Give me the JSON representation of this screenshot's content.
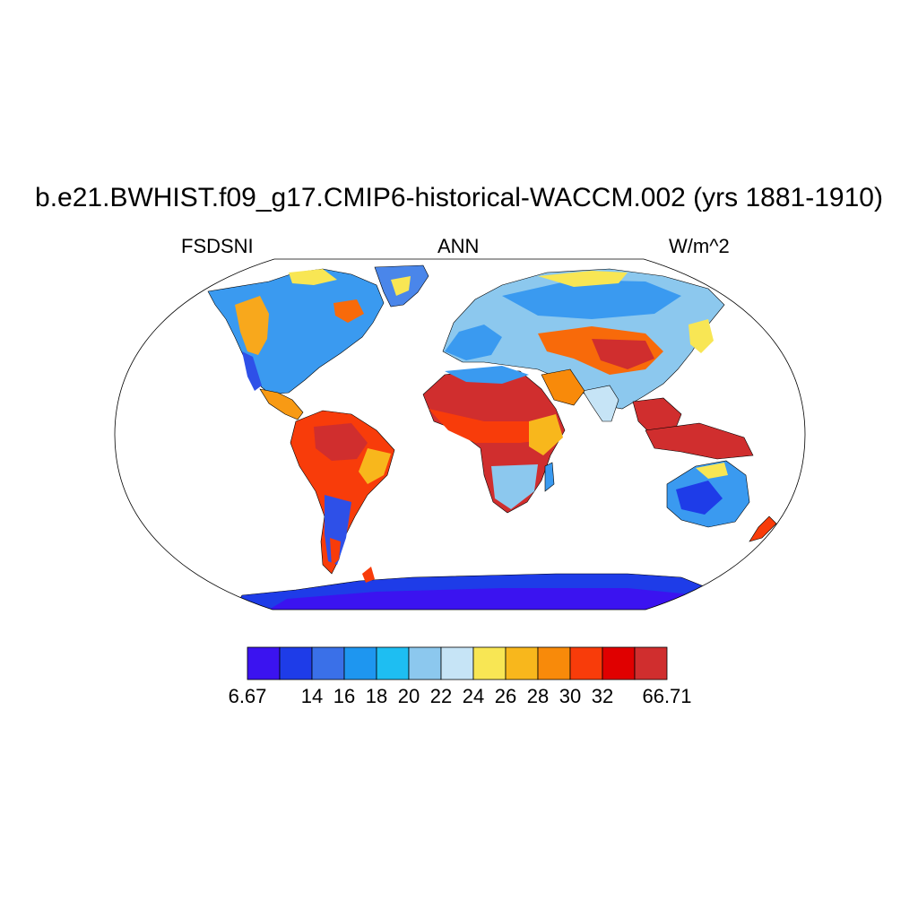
{
  "title": "b.e21.BWHIST.f09_g17.CMIP6-historical-WACCM.002 (yrs 1881-1910)",
  "subtitles": {
    "left": "FSDSNI",
    "center": "ANN",
    "right": "W/m^2"
  },
  "colorbar": {
    "colors": [
      "#3b13f0",
      "#1e3ce8",
      "#3a70e8",
      "#1e96f0",
      "#1ebef2",
      "#8cc8ee",
      "#c6e4f6",
      "#f8e654",
      "#f8b71c",
      "#f88a0a",
      "#f83c0a",
      "#e00000",
      "#d02e2e"
    ],
    "labels": [
      "6.67",
      "14",
      "16",
      "18",
      "20",
      "22",
      "24",
      "26",
      "28",
      "30",
      "32",
      "66.71"
    ],
    "label_positions": [
      0,
      2,
      3,
      4,
      5,
      6,
      7,
      8,
      9,
      10,
      11,
      13
    ]
  },
  "chart_data": {
    "type": "heatmap",
    "variable": "FSDSNI",
    "season": "ANN",
    "units": "W/m^2",
    "projection": "Robinson",
    "levels": [
      6.67,
      14,
      16,
      18,
      20,
      22,
      24,
      26,
      28,
      30,
      32,
      66.71
    ],
    "regions": [
      {
        "name": "North Africa / Sahara",
        "value": 34
      },
      {
        "name": "Sahel",
        "value": 30
      },
      {
        "name": "Central Africa",
        "value": 33
      },
      {
        "name": "Southern Africa",
        "value": 23
      },
      {
        "name": "Arabian Peninsula",
        "value": 29
      },
      {
        "name": "Tibetan Plateau",
        "value": 33
      },
      {
        "name": "Central Asia",
        "value": 29
      },
      {
        "name": "Siberia",
        "value": 20
      },
      {
        "name": "Europe",
        "value": 21
      },
      {
        "name": "India",
        "value": 25
      },
      {
        "name": "Southeast Asia",
        "value": 33
      },
      {
        "name": "Maritime Continent",
        "value": 34
      },
      {
        "name": "Amazon",
        "value": 31
      },
      {
        "name": "Eastern Brazil",
        "value": 28
      },
      {
        "name": "Southern South America",
        "value": 15
      },
      {
        "name": "Western North America",
        "value": 25
      },
      {
        "name": "Eastern North America",
        "value": 20
      },
      {
        "name": "Alaska / Canada",
        "value": 19
      },
      {
        "name": "Greenland",
        "value": 23
      },
      {
        "name": "Australia",
        "value": 19
      },
      {
        "name": "New Zealand",
        "value": 30
      },
      {
        "name": "Antarctica",
        "value": 12
      }
    ]
  }
}
